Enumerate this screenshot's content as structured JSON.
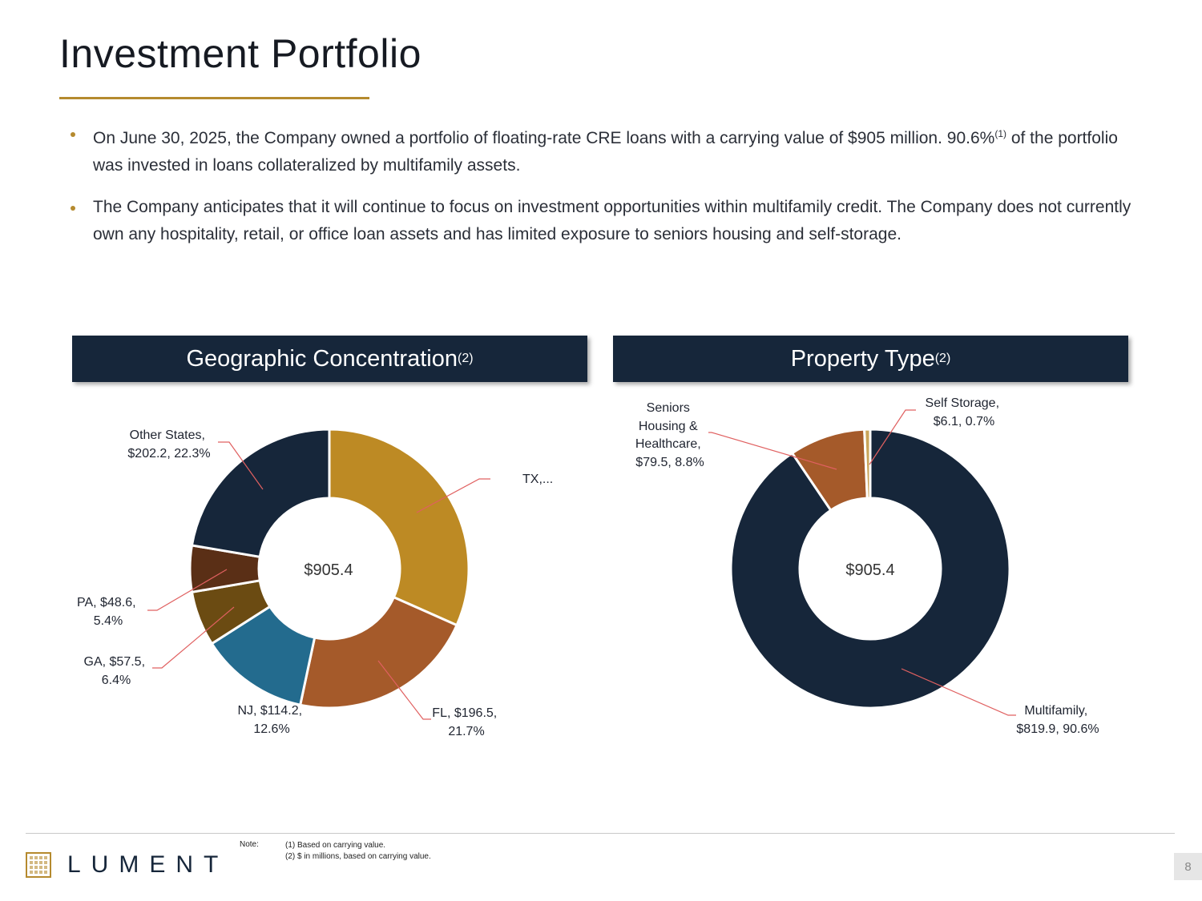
{
  "title": "Investment Portfolio",
  "bullets": [
    {
      "text_a": "On June 30, 2025, the Company owned a portfolio of floating-rate CRE loans with a carrying value of $905 million. 90.6%",
      "sup": "(1)",
      "text_b": " of the portfolio was invested in loans collateralized by multifamily assets."
    },
    {
      "text_a": "The Company anticipates that it will continue to focus on investment opportunities within multifamily credit. The Company does not currently own any hospitality, retail, or office loan assets and has limited exposure to seniors housing and self-storage.",
      "sup": "",
      "text_b": ""
    }
  ],
  "panels": {
    "geo": {
      "title": "Geographic Concentration",
      "sup": "(2)"
    },
    "prop": {
      "title": "Property Type",
      "sup": "(2)"
    }
  },
  "chart_data": [
    {
      "type": "pie",
      "variant": "donut",
      "title": "Geographic Concentration(2)",
      "center_label": "$905.4",
      "units": "$ in millions",
      "slices": [
        {
          "name": "TX",
          "value": 286.6,
          "percent": 31.7,
          "label": "TX,...",
          "color": "#bd8a24"
        },
        {
          "name": "FL",
          "value": 196.5,
          "percent": 21.7,
          "label": "FL, $196.5, 21.7%",
          "color": "#a55a2a"
        },
        {
          "name": "NJ",
          "value": 114.2,
          "percent": 12.6,
          "label": "NJ, $114.2, 12.6%",
          "color": "#236b8e"
        },
        {
          "name": "GA",
          "value": 57.5,
          "percent": 6.4,
          "label": "GA, $57.5, 6.4%",
          "color": "#6b4b12"
        },
        {
          "name": "PA",
          "value": 48.6,
          "percent": 5.4,
          "label": "PA, $48.6, 5.4%",
          "color": "#5a2f16"
        },
        {
          "name": "Other States",
          "value": 202.2,
          "percent": 22.3,
          "label": "Other States, $202.2, 22.3%",
          "color": "#16263a"
        }
      ]
    },
    {
      "type": "pie",
      "variant": "donut",
      "title": "Property Type(2)",
      "center_label": "$905.4",
      "units": "$ in millions",
      "slices": [
        {
          "name": "Multifamily",
          "value": 819.9,
          "percent": 90.6,
          "label": "Multifamily, $819.9, 90.6%",
          "color": "#16263a"
        },
        {
          "name": "Seniors Housing & Healthcare",
          "value": 79.5,
          "percent": 8.8,
          "label": "Seniors Housing & Healthcare, $79.5, 8.8%",
          "color": "#a55a2a"
        },
        {
          "name": "Self Storage",
          "value": 6.1,
          "percent": 0.7,
          "label": "Self Storage, $6.1, 0.7%",
          "color": "#c9a45a"
        }
      ]
    }
  ],
  "labels": {
    "geo": {
      "tx": [
        "TX,..."
      ],
      "fl": [
        "FL, $196.5,",
        "21.7%"
      ],
      "nj": [
        "NJ, $114.2,",
        "12.6%"
      ],
      "ga": [
        "GA, $57.5,",
        "6.4%"
      ],
      "pa": [
        "PA, $48.6,",
        "5.4%"
      ],
      "other": [
        "Other States,",
        "$202.2, 22.3%"
      ]
    },
    "prop": {
      "seniors": [
        "Seniors",
        "Housing &",
        "Healthcare,",
        "$79.5, 8.8%"
      ],
      "storage": [
        "Self Storage,",
        "$6.1, 0.7%"
      ],
      "multi": [
        "Multifamily,",
        "$819.9, 90.6%"
      ]
    }
  },
  "footer": {
    "logo_text": "LUMENT",
    "note_label": "Note:",
    "notes": [
      "(1) Based on carrying value.",
      "(2) $ in millions, based on carrying value."
    ],
    "page_number": "8"
  }
}
